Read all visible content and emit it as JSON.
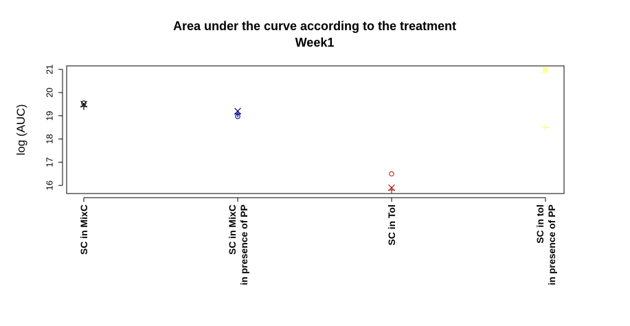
{
  "chart_data": {
    "type": "scatter",
    "title": "Area under the curve according to the treatment",
    "subtitle": "Week1",
    "xlabel": "",
    "ylabel": "log (AUC)",
    "ylim": [
      15.65,
      21.15
    ],
    "yticks": [
      16,
      17,
      18,
      19,
      20,
      21
    ],
    "grid": false,
    "categories": [
      {
        "lines": [
          "SC in MixC"
        ],
        "color": "#000000"
      },
      {
        "lines": [
          "SC in MixC",
          "in presence of PP"
        ],
        "color": "#00008B"
      },
      {
        "lines": [
          "SC in Tol"
        ],
        "color": "#B22222"
      },
      {
        "lines": [
          "SC in tol",
          "in presence of PP"
        ],
        "color": "#FFFF66"
      }
    ],
    "points": [
      {
        "category": 0,
        "marker": "circle",
        "y": 19.55
      },
      {
        "category": 0,
        "marker": "x",
        "y": 19.5
      },
      {
        "category": 0,
        "marker": "plus",
        "y": 19.4
      },
      {
        "category": 1,
        "marker": "circle",
        "y": 18.97
      },
      {
        "category": 1,
        "marker": "plus",
        "y": 19.08
      },
      {
        "category": 1,
        "marker": "x",
        "y": 19.2
      },
      {
        "category": 2,
        "marker": "circle",
        "y": 16.5
      },
      {
        "category": 2,
        "marker": "x",
        "y": 15.9
      },
      {
        "category": 2,
        "marker": "plus",
        "y": 15.8
      },
      {
        "category": 3,
        "marker": "circle",
        "y": 20.97
      },
      {
        "category": 3,
        "marker": "x",
        "y": 20.97
      },
      {
        "category": 3,
        "marker": "plus",
        "y": 18.5
      }
    ]
  }
}
